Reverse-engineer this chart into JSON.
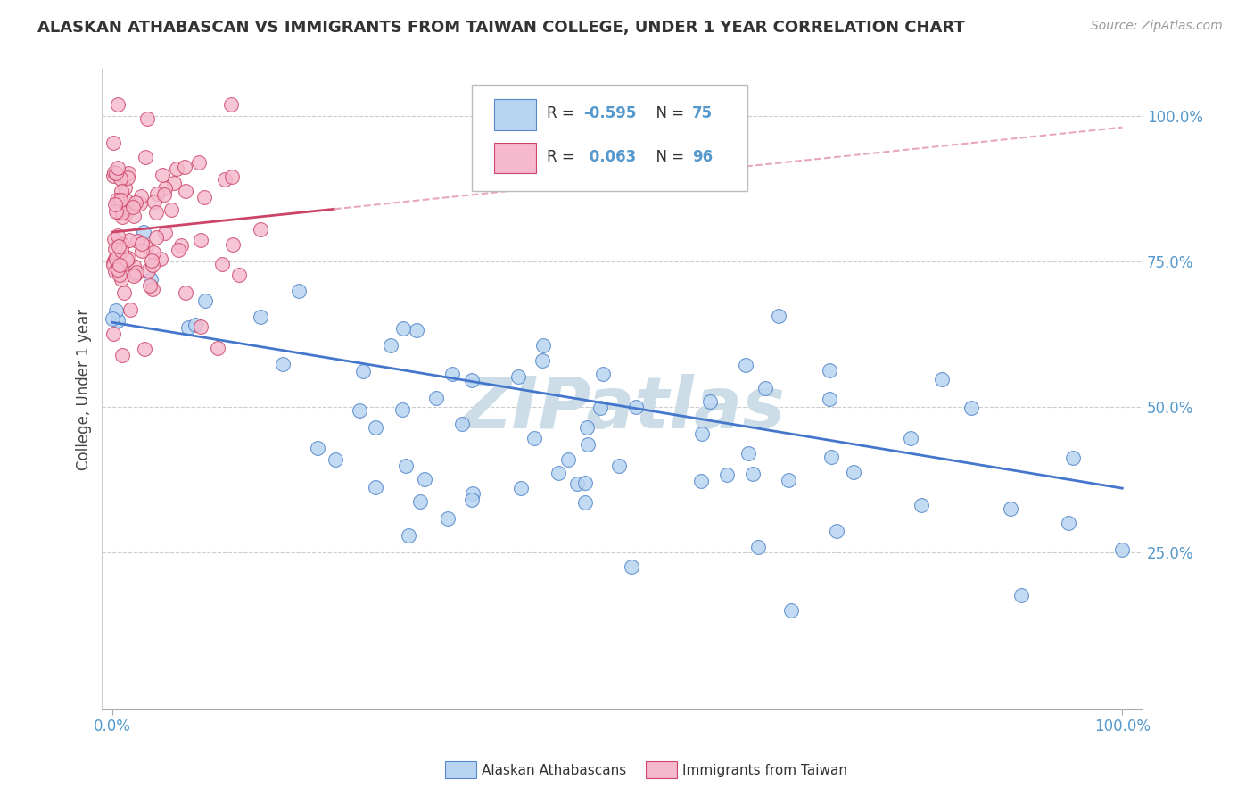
{
  "title": "ALASKAN ATHABASCAN VS IMMIGRANTS FROM TAIWAN COLLEGE, UNDER 1 YEAR CORRELATION CHART",
  "source": "Source: ZipAtlas.com",
  "ylabel": "College, Under 1 year",
  "legend_entries": [
    {
      "label": "Alaskan Athabascans",
      "R": -0.595,
      "N": 75,
      "face": "#b8d4f0",
      "edge": "#5588cc"
    },
    {
      "label": "Immigrants from Taiwan",
      "R": 0.063,
      "N": 96,
      "face": "#f5b8cc",
      "edge": "#cc4466"
    }
  ],
  "blue_face": "#b8d4f0",
  "blue_edge": "#5588cc",
  "blue_line": "#4477cc",
  "pink_face": "#f5b8cc",
  "pink_edge": "#cc4466",
  "pink_line_solid": "#cc4466",
  "pink_line_dashed": "#e8a8bc",
  "watermark_text": "ZIPatlas",
  "watermark_color": "#ccdde8",
  "bg_color": "#ffffff",
  "grid_color": "#cccccc",
  "tick_color": "#5599cc",
  "title_color": "#333333",
  "source_color": "#999999"
}
